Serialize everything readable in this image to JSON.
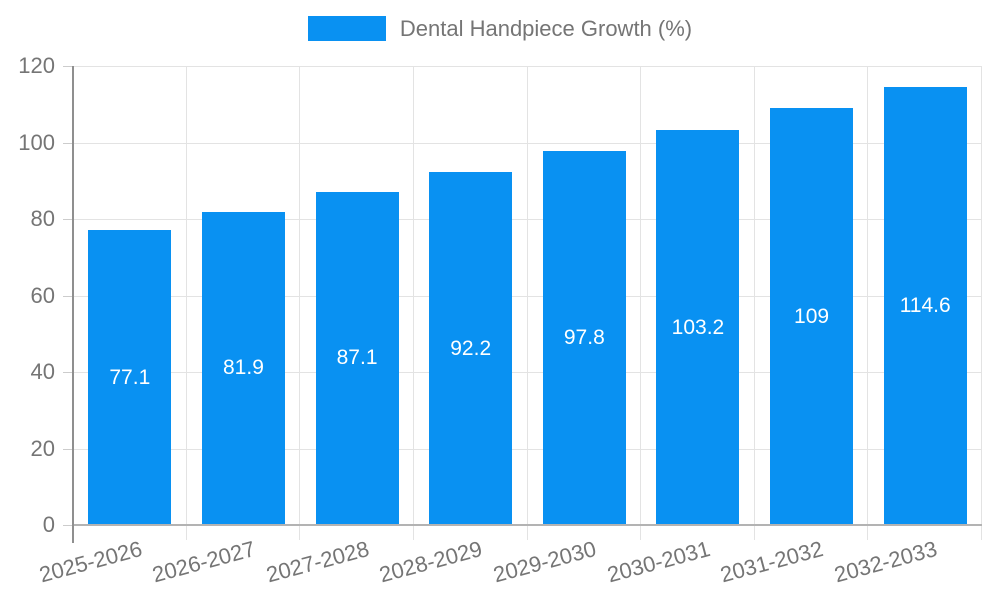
{
  "legend": {
    "label": "Dental Handpiece Growth (%)",
    "position": "top"
  },
  "chart_data": {
    "type": "bar",
    "title": "Dental Handpiece Growth (%)",
    "categories": [
      "2025-2026",
      "2026-2027",
      "2027-2028",
      "2028-2029",
      "2029-2030",
      "2030-2031",
      "2031-2032",
      "2032-2033"
    ],
    "series": [
      {
        "name": "Dental Handpiece Growth (%)",
        "values": [
          77.1,
          81.9,
          87.1,
          92.2,
          97.8,
          103.2,
          109,
          114.6
        ]
      }
    ],
    "value_labels": [
      "77.1",
      "81.9",
      "87.1",
      "92.2",
      "97.8",
      "103.2",
      "109",
      "114.6"
    ],
    "xlabel": "",
    "ylabel": "",
    "ylim": [
      0,
      120
    ],
    "yticks": [
      0,
      20,
      40,
      60,
      80,
      100,
      120
    ],
    "grid": true,
    "legend_position": "top",
    "x_tick_rotation_deg": -15,
    "bar_color": "#0991f2",
    "value_label_color": "#ffffff",
    "axis_text_color": "#757575",
    "gridline_color": "#e3e3e3",
    "axis_line_color": "#9e9e9e"
  }
}
